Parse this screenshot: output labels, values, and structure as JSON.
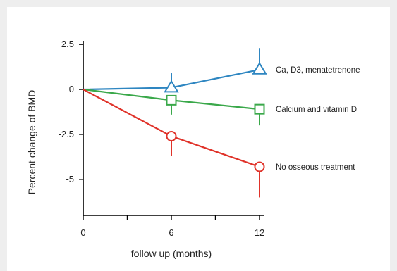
{
  "chart_data": {
    "type": "line",
    "title": "",
    "xlabel": "follow up (months)",
    "ylabel": "Percent change of BMD",
    "x": [
      0,
      6,
      12
    ],
    "x_ticks": [
      "0",
      "6",
      "12"
    ],
    "y_ticks": [
      "2.5",
      "0",
      "-2.5",
      "-5"
    ],
    "xlim": [
      0,
      12
    ],
    "ylim": [
      -7,
      2.7
    ],
    "grid": false,
    "series": [
      {
        "name": "Ca, D3, menatetrenone",
        "color": "#2e86c1",
        "marker": "triangle",
        "values": [
          0,
          0.1,
          1.1
        ],
        "error_up": [
          0,
          0.8,
          1.2
        ]
      },
      {
        "name": "Calcium and vitamin D",
        "color": "#3aa84a",
        "marker": "square",
        "values": [
          0,
          -0.6,
          -1.1
        ],
        "error_down": [
          0,
          0.8,
          0.9
        ]
      },
      {
        "name": "No osseous treatment",
        "color": "#e0332a",
        "marker": "circle",
        "values": [
          0,
          -2.6,
          -4.3
        ],
        "error_down": [
          0,
          1.1,
          1.7
        ]
      }
    ]
  }
}
